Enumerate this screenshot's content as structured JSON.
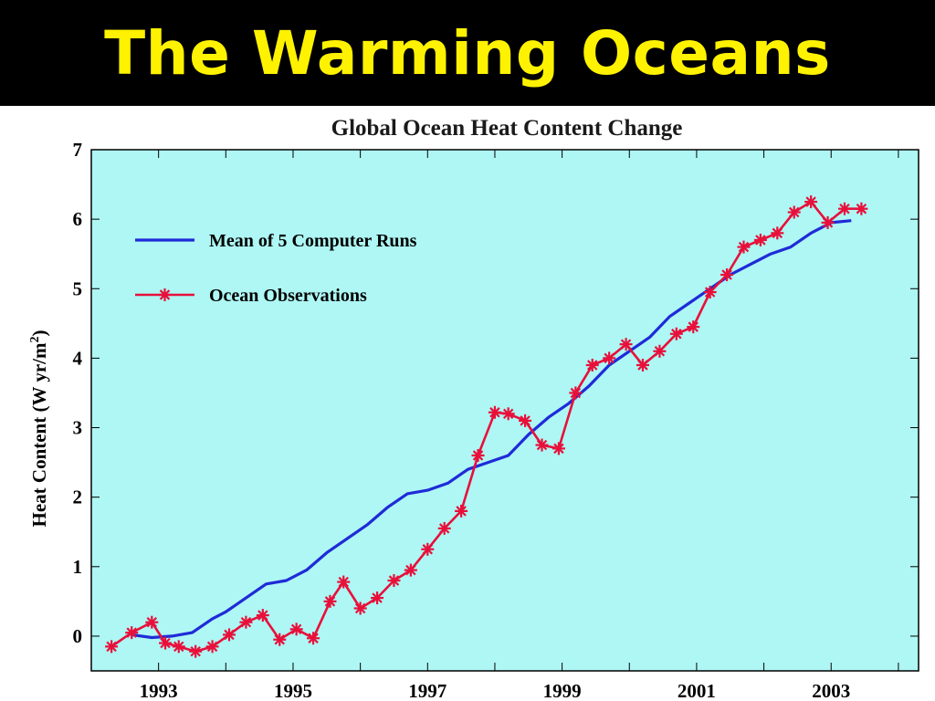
{
  "slide": {
    "title": "The Warming Oceans"
  },
  "colors": {
    "background": "#000000",
    "title_text": "#FFF200",
    "plot_background": "#AEF7F4",
    "model_line": "#1F2BD8",
    "observations_line": "#E8103A"
  },
  "chart_data": {
    "type": "line",
    "title": "Global Ocean Heat Content Change",
    "xlabel": "",
    "ylabel": "Heat Content (W yr/m²)",
    "ylabel_main": "Heat Content (W yr/m",
    "ylabel_sup": "2",
    "ylabel_end": ")",
    "xlim": [
      1992,
      2004.3
    ],
    "ylim": [
      -0.5,
      7
    ],
    "x_ticks": [
      1993,
      1995,
      1997,
      1999,
      2001,
      2003
    ],
    "x_tick_labels": [
      "1993",
      "1995",
      "1997",
      "1999",
      "2001",
      "2003"
    ],
    "y_ticks": [
      0,
      1,
      2,
      3,
      4,
      5,
      6,
      7
    ],
    "y_tick_labels": [
      "0",
      "1",
      "2",
      "3",
      "4",
      "5",
      "6",
      "7"
    ],
    "grid": false,
    "legend_position": "top-left",
    "series": [
      {
        "name": "Mean of 5 Computer Runs",
        "marker": "none",
        "x": [
          1992.6,
          1992.9,
          1993.2,
          1993.5,
          1993.8,
          1994.0,
          1994.3,
          1994.6,
          1994.9,
          1995.2,
          1995.5,
          1995.8,
          1996.1,
          1996.4,
          1996.7,
          1997.0,
          1997.3,
          1997.6,
          1997.9,
          1998.2,
          1998.5,
          1998.8,
          1999.1,
          1999.4,
          1999.7,
          2000.0,
          2000.3,
          2000.6,
          2000.9,
          2001.2,
          2001.5,
          2001.8,
          2002.1,
          2002.4,
          2002.7,
          2003.0,
          2003.3
        ],
        "y": [
          0.02,
          -0.02,
          0.0,
          0.05,
          0.25,
          0.35,
          0.55,
          0.75,
          0.8,
          0.95,
          1.2,
          1.4,
          1.6,
          1.85,
          2.05,
          2.1,
          2.2,
          2.4,
          2.5,
          2.6,
          2.9,
          3.15,
          3.35,
          3.6,
          3.9,
          4.1,
          4.3,
          4.6,
          4.8,
          5.0,
          5.2,
          5.35,
          5.5,
          5.6,
          5.8,
          5.95,
          5.98
        ]
      },
      {
        "name": "Ocean Observations",
        "marker": "asterisk",
        "x": [
          1992.3,
          1992.6,
          1992.9,
          1993.1,
          1993.3,
          1993.55,
          1993.8,
          1994.05,
          1994.3,
          1994.55,
          1994.8,
          1995.05,
          1995.3,
          1995.55,
          1995.75,
          1996.0,
          1996.25,
          1996.5,
          1996.75,
          1997.0,
          1997.25,
          1997.5,
          1997.75,
          1998.0,
          1998.2,
          1998.45,
          1998.7,
          1998.95,
          1999.2,
          1999.45,
          1999.7,
          1999.95,
          2000.2,
          2000.45,
          2000.7,
          2000.95,
          2001.2,
          2001.45,
          2001.7,
          2001.95,
          2002.2,
          2002.45,
          2002.7,
          2002.95,
          2003.2,
          2003.45
        ],
        "y": [
          -0.15,
          0.05,
          0.2,
          -0.1,
          -0.15,
          -0.22,
          -0.15,
          0.02,
          0.2,
          0.3,
          -0.05,
          0.1,
          -0.03,
          0.5,
          0.78,
          0.4,
          0.55,
          0.8,
          0.95,
          1.25,
          1.55,
          1.8,
          2.6,
          3.22,
          3.2,
          3.1,
          2.75,
          2.7,
          3.5,
          3.9,
          4.0,
          4.2,
          3.9,
          4.1,
          4.35,
          4.45,
          4.95,
          5.2,
          5.6,
          5.7,
          5.8,
          6.1,
          6.25,
          5.95,
          6.15,
          6.15
        ]
      }
    ]
  }
}
